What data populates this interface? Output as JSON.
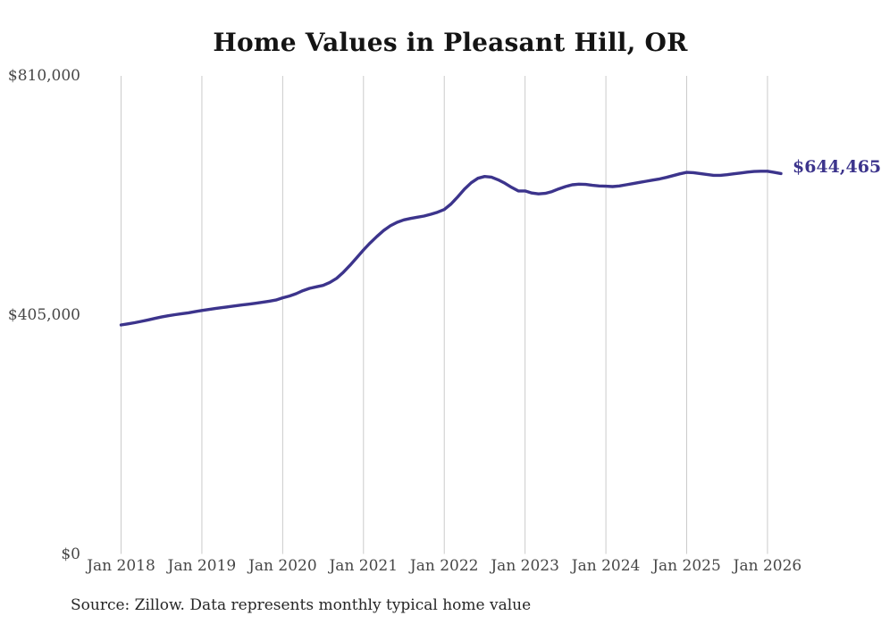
{
  "title": "Home Values in Pleasant Hill, OR",
  "source_note": "Source: Zillow. Data represents monthly typical home value",
  "colors": {
    "line": "#3c348c",
    "grid": "#cbcbcb",
    "axis_text": "#474747",
    "title_text": "#141414",
    "source_text": "#262626"
  },
  "chart_data": {
    "type": "line",
    "title": "Home Values in Pleasant Hill, OR",
    "xlabel": "",
    "ylabel": "",
    "ylim": [
      0,
      810000
    ],
    "grid": "vertical-only",
    "legend": "none",
    "x_tick_labels": [
      "Jan 2018",
      "Jan 2019",
      "Jan 2020",
      "Jan 2021",
      "Jan 2022",
      "Jan 2023",
      "Jan 2024",
      "Jan 2025",
      "Jan 2026"
    ],
    "y_tick_labels": [
      "$0",
      "$405,000",
      "$810,000"
    ],
    "x_start_month": "2018-01",
    "x_end_month": "2026-03",
    "final_value": 644465,
    "final_value_label": "$644,465",
    "series": [
      {
        "name": "Monthly typical home value",
        "monthly_values": [
          388000,
          389800,
          391700,
          394000,
          396500,
          399000,
          401500,
          403600,
          405400,
          407000,
          408600,
          410500,
          412500,
          414200,
          415800,
          417300,
          418800,
          420300,
          421800,
          423300,
          424800,
          426400,
          428200,
          430200,
          434000,
          437000,
          441000,
          446000,
          450000,
          452500,
          455000,
          460000,
          467000,
          477000,
          489000,
          502000,
          515000,
          527000,
          538000,
          548000,
          556000,
          562000,
          566000,
          568500,
          570500,
          572500,
          575500,
          579000,
          583500,
          593000,
          605000,
          618000,
          629000,
          636500,
          639500,
          638500,
          634000,
          628000,
          621000,
          615000,
          615000,
          611500,
          610000,
          611000,
          614000,
          618500,
          622500,
          625500,
          626500,
          626000,
          624500,
          623500,
          623000,
          622500,
          623500,
          625500,
          627500,
          629500,
          631500,
          633500,
          635500,
          638000,
          641000,
          644000,
          646500,
          646000,
          644500,
          643000,
          641500,
          641500,
          642500,
          644000,
          645500,
          647000,
          648000,
          648500,
          648500,
          646500,
          644465
        ]
      }
    ]
  }
}
